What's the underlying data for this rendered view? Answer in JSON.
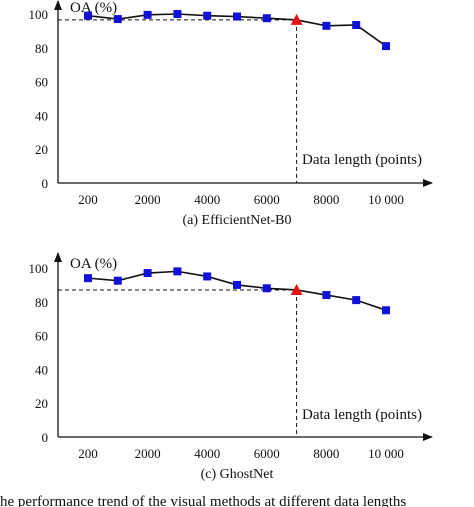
{
  "chart_data": [
    {
      "type": "line",
      "caption": "(a) EfficientNet-B0",
      "ylabel": "OA (%)",
      "xlabel": "Data length (points)",
      "yticks": [
        0,
        20,
        40,
        60,
        80,
        100
      ],
      "ylim": [
        0,
        110
      ],
      "categories": [
        "200",
        "1000",
        "2000",
        "3000",
        "4000",
        "5000",
        "6000",
        "7000",
        "8000",
        "9000",
        "10 000"
      ],
      "xtick_labels": [
        "200",
        "",
        "2000",
        "",
        "4000",
        "",
        "6000",
        "",
        "8000",
        "",
        "10 000"
      ],
      "values": [
        99,
        97,
        99.5,
        100,
        99,
        98.5,
        97.5,
        96.5,
        93,
        93.5,
        81
      ],
      "highlight": {
        "category": "7000",
        "value": 96.5
      },
      "colors": {
        "marker": "#1010d8",
        "highlight": "#e01414",
        "line": "#111111"
      }
    },
    {
      "type": "line",
      "caption": "(c) GhostNet",
      "ylabel": "OA (%)",
      "xlabel": "Data length (points)",
      "yticks": [
        0,
        20,
        40,
        60,
        80,
        100
      ],
      "ylim": [
        0,
        110
      ],
      "categories": [
        "200",
        "1000",
        "2000",
        "3000",
        "4000",
        "5000",
        "6000",
        "7000",
        "8000",
        "9000",
        "10 000"
      ],
      "xtick_labels": [
        "200",
        "",
        "2000",
        "",
        "4000",
        "",
        "6000",
        "",
        "8000",
        "",
        "10 000"
      ],
      "values": [
        94,
        92.5,
        97,
        98,
        95,
        90,
        88,
        87,
        84,
        81,
        75
      ],
      "highlight": {
        "category": "7000",
        "value": 87
      },
      "colors": {
        "marker": "#1010d8",
        "highlight": "#e01414",
        "line": "#111111"
      }
    }
  ],
  "figure_caption": "he performance trend of the visual methods at different data lengths"
}
